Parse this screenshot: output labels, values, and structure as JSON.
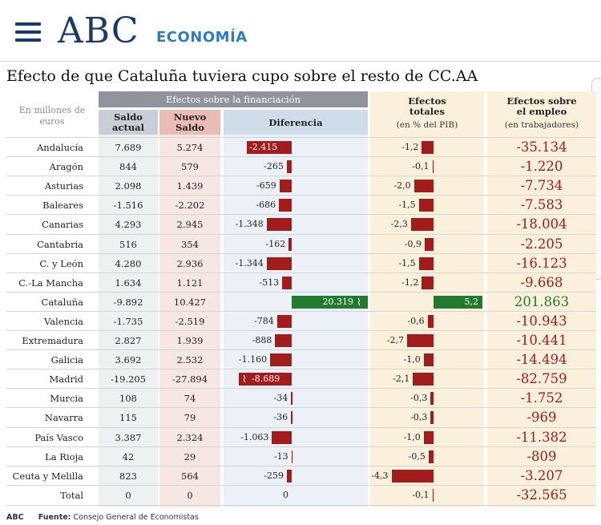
{
  "header": {
    "logo": "ABC",
    "section": "ECONOMÍA"
  },
  "chart_data": {
    "type": "table",
    "title": "Efecto de que Cataluña tuviera cupo sobre el resto de CC.AA",
    "unit_note": "En millones de euros",
    "group_header": "Efectos sobre la financiación",
    "columns": {
      "saldo": "Saldo actual",
      "nuevo": "Nuevo Saldo",
      "diferencia": "Diferencia",
      "efectos_totales": "Efectos totales",
      "efectos_totales_sub": "(en % del PIB)",
      "empleo": "Efectos sobre el empleo",
      "empleo_sub": "(en trabajadores)"
    },
    "colors": {
      "negative": "#a31c1c",
      "positive": "#227a2e"
    },
    "diferencia_axis": {
      "min": -3000,
      "max": 3000,
      "note": "Cataluña and Madrid bars truncated (break mark)"
    },
    "efectos_axis": {
      "min": -5,
      "max": 5
    },
    "rows": [
      {
        "region": "Andalucía",
        "saldo": "7.689",
        "nuevo": "5.274",
        "diferencia": -2415,
        "diferencia_label": "-2.415",
        "pib": -1.2,
        "pib_label": "-1,2",
        "empleo": "-35.134"
      },
      {
        "region": "Aragón",
        "saldo": "844",
        "nuevo": "579",
        "diferencia": -265,
        "diferencia_label": "-265",
        "pib": -0.1,
        "pib_label": "-0,1",
        "empleo": "-1.220"
      },
      {
        "region": "Asturias",
        "saldo": "2.098",
        "nuevo": "1.439",
        "diferencia": -659,
        "diferencia_label": "-659",
        "pib": -2.0,
        "pib_label": "-2,0",
        "empleo": "-7.734"
      },
      {
        "region": "Baleares",
        "saldo": "-1.516",
        "nuevo": "-2.202",
        "diferencia": -686,
        "diferencia_label": "-686",
        "pib": -1.5,
        "pib_label": "-1,5",
        "empleo": "-7.583"
      },
      {
        "region": "Canarias",
        "saldo": "4.293",
        "nuevo": "2.945",
        "diferencia": -1348,
        "diferencia_label": "-1.348",
        "pib": -2.3,
        "pib_label": "-2,3",
        "empleo": "-18.004"
      },
      {
        "region": "Cantabria",
        "saldo": "516",
        "nuevo": "354",
        "diferencia": -162,
        "diferencia_label": "-162",
        "pib": -0.9,
        "pib_label": "-0,9",
        "empleo": "-2.205"
      },
      {
        "region": "C. y León",
        "saldo": "4.280",
        "nuevo": "2.936",
        "diferencia": -1344,
        "diferencia_label": "-1.344",
        "pib": -1.5,
        "pib_label": "-1,5",
        "empleo": "-16.123"
      },
      {
        "region": "C.-La Mancha",
        "saldo": "1.634",
        "nuevo": "1.121",
        "diferencia": -513,
        "diferencia_label": "-513",
        "pib": -1.2,
        "pib_label": "-1,2",
        "empleo": "-9.668"
      },
      {
        "region": "Cataluña",
        "saldo": "-9.892",
        "nuevo": "10.427",
        "diferencia": 20319,
        "diferencia_label": "20.319",
        "pib": 5.2,
        "pib_label": "5,2",
        "empleo": "201.863",
        "truncated": true
      },
      {
        "region": "Valencia",
        "saldo": "-1.735",
        "nuevo": "-2.519",
        "diferencia": -784,
        "diferencia_label": "-784",
        "pib": -0.6,
        "pib_label": "-0,6",
        "empleo": "-10.943"
      },
      {
        "region": "Extremadura",
        "saldo": "2.827",
        "nuevo": "1.939",
        "diferencia": -888,
        "diferencia_label": "-888",
        "pib": -2.7,
        "pib_label": "-2,7",
        "empleo": "-10.441"
      },
      {
        "region": "Galicia",
        "saldo": "3.692",
        "nuevo": "2.532",
        "diferencia": -1160,
        "diferencia_label": "-1.160",
        "pib": -1.0,
        "pib_label": "-1,0",
        "empleo": "-14.494"
      },
      {
        "region": "Madrid",
        "saldo": "-19.205",
        "nuevo": "-27.894",
        "diferencia": -8689,
        "diferencia_label": "-8.689",
        "pib": -2.1,
        "pib_label": "-2,1",
        "empleo": "-82.759",
        "truncated": true
      },
      {
        "region": "Murcia",
        "saldo": "108",
        "nuevo": "74",
        "diferencia": -34,
        "diferencia_label": "-34",
        "pib": -0.3,
        "pib_label": "-0,3",
        "empleo": "-1.752"
      },
      {
        "region": "Navarra",
        "saldo": "115",
        "nuevo": "79",
        "diferencia": -36,
        "diferencia_label": "-36",
        "pib": -0.3,
        "pib_label": "-0,3",
        "empleo": "-969"
      },
      {
        "region": "País Vasco",
        "saldo": "3.387",
        "nuevo": "2.324",
        "diferencia": -1063,
        "diferencia_label": "-1.063",
        "pib": -1.0,
        "pib_label": "-1,0",
        "empleo": "-11.382"
      },
      {
        "region": "La Rioja",
        "saldo": "42",
        "nuevo": "29",
        "diferencia": -13,
        "diferencia_label": "-13",
        "pib": -0.5,
        "pib_label": "-0,5",
        "empleo": "-809"
      },
      {
        "region": "Ceuta y Melilla",
        "saldo": "823",
        "nuevo": "564",
        "diferencia": -259,
        "diferencia_label": "-259",
        "pib": -4.3,
        "pib_label": "-4,3",
        "empleo": "-3.207"
      },
      {
        "region": "Total",
        "saldo": "0",
        "nuevo": "0",
        "diferencia": 0,
        "diferencia_label": "0",
        "pib": -0.1,
        "pib_label": "-0,1",
        "empleo": "-32.565"
      }
    ],
    "source_brand": "ABC",
    "source_label": "Fuente:",
    "source_text": "Consejo General de Economistas"
  }
}
